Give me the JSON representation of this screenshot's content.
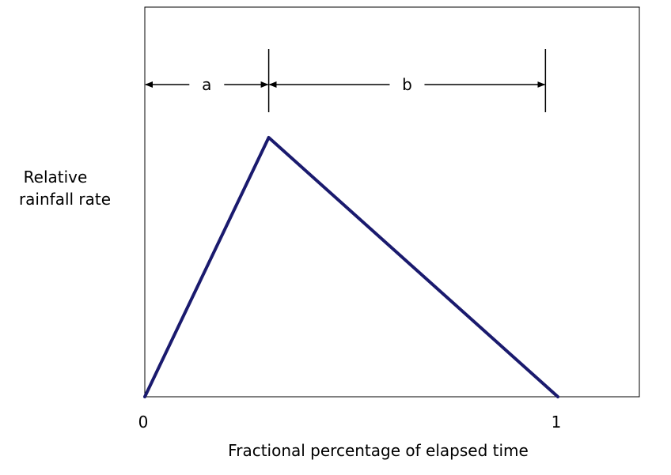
{
  "chart_data": {
    "type": "line",
    "title": "",
    "xlabel": "Fractional percentage of elapsed time",
    "ylabel_lines": [
      "Relative",
      "rainfall rate"
    ],
    "x_ticks": [
      {
        "value": 0,
        "label": "0"
      },
      {
        "value": 1,
        "label": "1"
      }
    ],
    "xlim": [
      0,
      1.2
    ],
    "ylim": [
      0,
      1.5
    ],
    "series": [
      {
        "color": "#1a1a6e",
        "x": [
          0,
          0.3,
          1.0
        ],
        "y": [
          0,
          1.0,
          0
        ]
      }
    ],
    "annotations": [
      {
        "label": "a",
        "from": 0,
        "to": 0.3
      },
      {
        "label": "b",
        "from": 0.3,
        "to": 0.97
      }
    ],
    "grid": false,
    "legend": "none"
  }
}
